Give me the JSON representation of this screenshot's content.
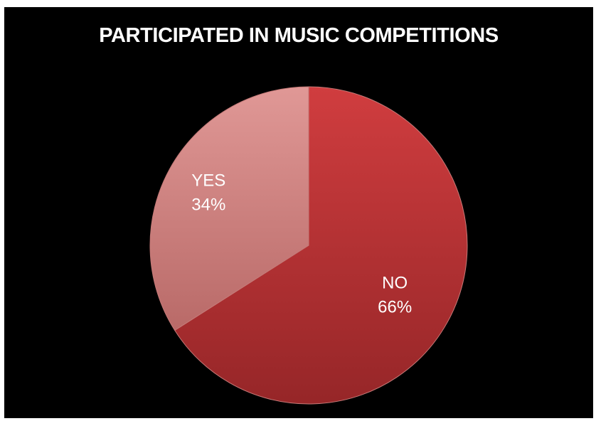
{
  "chart_data": {
    "type": "pie",
    "title": "PARTICIPATED IN MUSIC COMPETITIONS",
    "slices": [
      {
        "label": "NO",
        "value": 66,
        "display": "66%",
        "color": "#b93234"
      },
      {
        "label": "YES",
        "value": 34,
        "display": "34%",
        "color": "#d4817f"
      }
    ],
    "start": "12 o'clock",
    "direction": "clockwise",
    "legend": "none",
    "background": "#000000"
  }
}
